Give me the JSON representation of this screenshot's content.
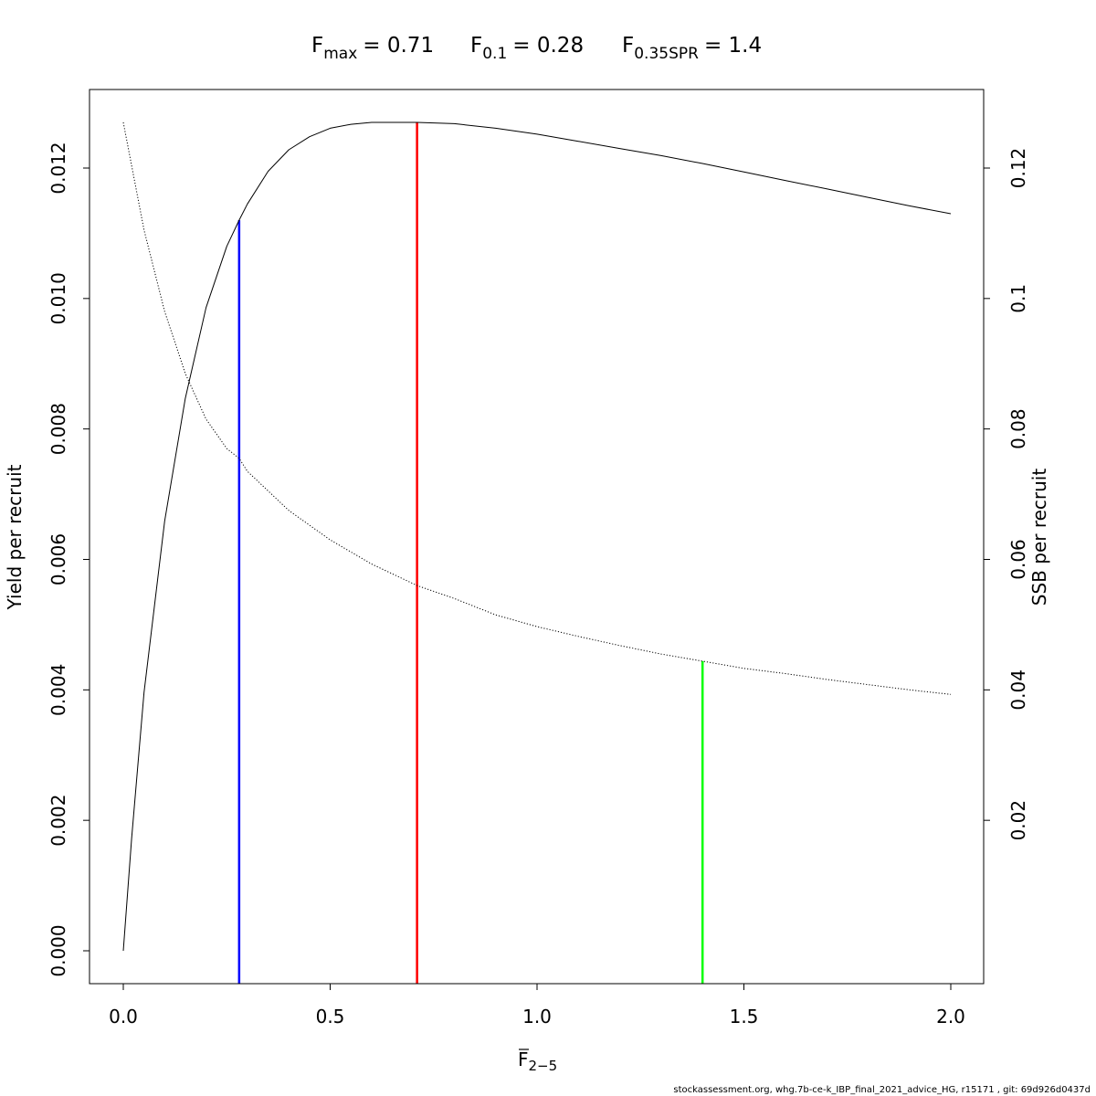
{
  "chart_data": {
    "type": "line",
    "title_parts": [
      {
        "symbol": "F",
        "sub": "max",
        "value": "= 0.71"
      },
      {
        "symbol": "F",
        "sub": "0.1",
        "value": "= 0.28"
      },
      {
        "symbol": "F",
        "sub": "0.35SPR",
        "value": "= 1.4"
      }
    ],
    "xlabel_symbol": "F",
    "xlabel_sub": "2−5",
    "ylabel_left": "Yield per recruit",
    "ylabel_right": "SSB per recruit",
    "xlim": [
      0.0,
      2.0
    ],
    "ylim_left": [
      0.0,
      0.0127
    ],
    "ylim_right": [
      0.0,
      0.127
    ],
    "x_ticks": [
      "0.0",
      "0.5",
      "1.0",
      "1.5",
      "2.0"
    ],
    "y_left_ticks": [
      "0.000",
      "0.002",
      "0.004",
      "0.006",
      "0.008",
      "0.010",
      "0.012"
    ],
    "y_right_ticks": [
      "0.02",
      "0.04",
      "0.06",
      "0.08",
      "0.1",
      "0.12"
    ],
    "grid": false,
    "series": [
      {
        "axis": "left",
        "line_style": "solid",
        "color": "#000000",
        "x": [
          0.0,
          0.02,
          0.05,
          0.1,
          0.15,
          0.2,
          0.25,
          0.28,
          0.3,
          0.35,
          0.4,
          0.45,
          0.5,
          0.55,
          0.6,
          0.65,
          0.71,
          0.8,
          0.9,
          1.0,
          1.1,
          1.2,
          1.3,
          1.4,
          1.5,
          1.6,
          1.7,
          1.8,
          1.9,
          2.0
        ],
        "values": [
          0.0,
          0.00172,
          0.00396,
          0.00659,
          0.00847,
          0.00986,
          0.0108,
          0.0112,
          0.01145,
          0.01195,
          0.01228,
          0.01248,
          0.01261,
          0.01267,
          0.0127,
          0.0127,
          0.0127,
          0.01268,
          0.01261,
          0.01252,
          0.01241,
          0.0123,
          0.01219,
          0.01207,
          0.01194,
          0.01181,
          0.01168,
          0.01155,
          0.01142,
          0.0113
        ]
      },
      {
        "axis": "right",
        "line_style": "dotted",
        "color": "#000000",
        "x": [
          0.0,
          0.05,
          0.1,
          0.15,
          0.2,
          0.25,
          0.28,
          0.3,
          0.4,
          0.5,
          0.6,
          0.71,
          0.8,
          0.9,
          1.0,
          1.1,
          1.2,
          1.3,
          1.4,
          1.5,
          1.6,
          1.7,
          1.8,
          1.9,
          2.0
        ],
        "values": [
          0.127,
          0.1105,
          0.098,
          0.0885,
          0.0815,
          0.077,
          0.0755,
          0.0735,
          0.0675,
          0.063,
          0.0593,
          0.056,
          0.054,
          0.0515,
          0.0497,
          0.0482,
          0.0468,
          0.0455,
          0.0444,
          0.0433,
          0.0425,
          0.0416,
          0.0408,
          0.04,
          0.0393
        ]
      }
    ],
    "reference_lines": [
      {
        "x": 0.28,
        "axis": "left",
        "top": 0.0112,
        "color": "#0000FF"
      },
      {
        "x": 0.71,
        "axis": "left",
        "top": 0.0127,
        "color": "#FF0000"
      },
      {
        "x": 1.4,
        "axis": "right",
        "top": 0.0444,
        "color": "#00FF00"
      }
    ]
  },
  "footer": "stockassessment.org, whg.7b-ce-k_IBP_final_2021_advice_HG, r15171 , git: 69d926d0437d"
}
